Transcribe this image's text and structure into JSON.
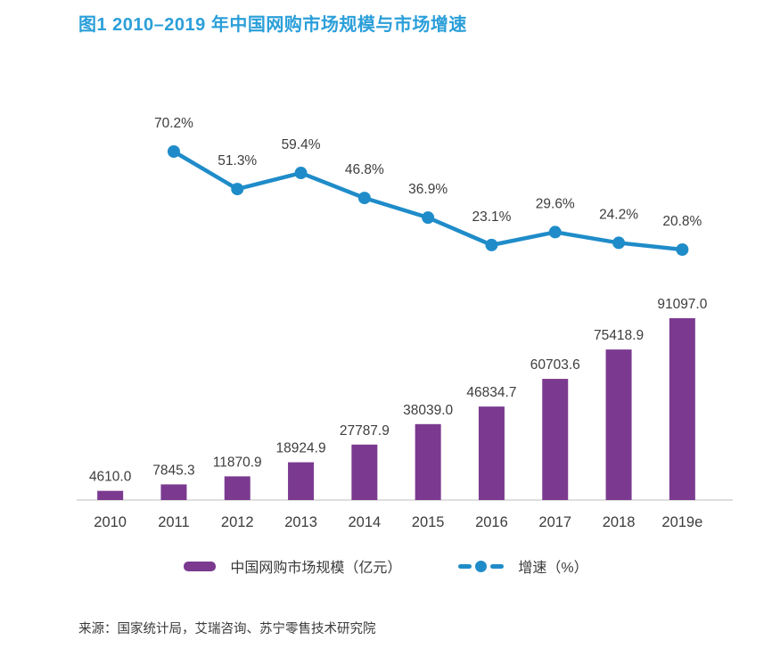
{
  "page": {
    "title": "图1 2010–2019 年中国网购市场规模与市场增速",
    "source": "来源：国家统计局，艾瑞咨询、苏宁零售技术研究院"
  },
  "colors": {
    "title_blue": "#2B9FD9",
    "bar_purple": "#7B3A90",
    "line_blue": "#1F8CC9",
    "label_gray": "#3D3D3D",
    "axis_gray": "#DEDEDE"
  },
  "legend": {
    "bar_label": "中国网购市场规模（亿元）",
    "line_label": "增速（%）"
  },
  "chart_data": {
    "type": "bar",
    "combo": "bar+line",
    "title": "图1 2010–2019 年中国网购市场规模与市场增速",
    "categories": [
      "2010",
      "2011",
      "2012",
      "2013",
      "2014",
      "2015",
      "2016",
      "2017",
      "2018",
      "2019e"
    ],
    "series": [
      {
        "name": "中国网购市场规模（亿元）",
        "type": "bar",
        "color": "#7B3A90",
        "values": [
          4610.0,
          7845.3,
          11870.9,
          18924.9,
          27787.9,
          38039.0,
          46834.7,
          60703.6,
          75418.9,
          91097.0
        ],
        "label_decimals": 1
      },
      {
        "name": "增速（%）",
        "type": "line",
        "color": "#1F8CC9",
        "unit": "%",
        "values": [
          null,
          70.2,
          51.3,
          59.4,
          46.8,
          36.9,
          23.1,
          29.6,
          24.2,
          20.8
        ],
        "label_decimals": 1
      }
    ],
    "xlabel": "",
    "ylabel": "",
    "grid": false,
    "data_labels": true,
    "legend_position": "bottom",
    "source": "来源：国家统计局，艾瑞咨询、苏宁零售技术研究院"
  }
}
